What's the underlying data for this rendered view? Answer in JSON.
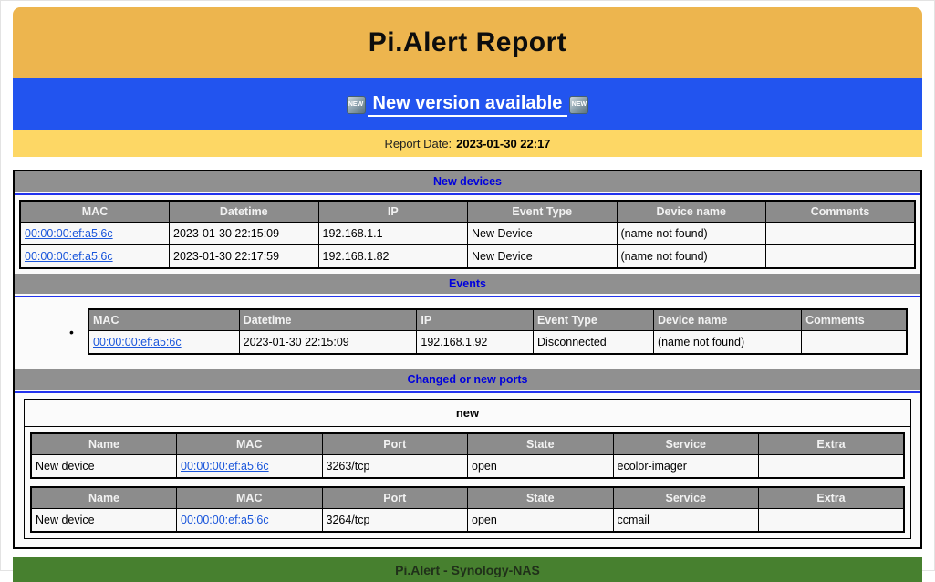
{
  "header": {
    "title": "Pi.Alert Report"
  },
  "banner": {
    "link_label": "New version available",
    "badge_label": "NEW"
  },
  "report_date": {
    "label": "Report Date:",
    "value": "2023-01-30 22:17"
  },
  "sections": {
    "new_devices": {
      "title": "New devices",
      "columns": [
        "MAC",
        "Datetime",
        "IP",
        "Event Type",
        "Device name",
        "Comments"
      ],
      "rows": [
        {
          "mac": "00:00:00:ef:a5:6c",
          "datetime": "2023-01-30 22:15:09",
          "ip": "192.168.1.1",
          "event_type": "New Device",
          "device_name": "(name not found)",
          "comments": ""
        },
        {
          "mac": "00:00:00:ef:a5:6c",
          "datetime": "2023-01-30 22:17:59",
          "ip": "192.168.1.82",
          "event_type": "New Device",
          "device_name": "(name not found)",
          "comments": ""
        }
      ]
    },
    "events": {
      "title": "Events",
      "columns": [
        "MAC",
        "Datetime",
        "IP",
        "Event Type",
        "Device name",
        "Comments"
      ],
      "rows": [
        {
          "mac": "00:00:00:ef:a5:6c",
          "datetime": "2023-01-30 22:15:09",
          "ip": "192.168.1.92",
          "event_type": "Disconnected",
          "device_name": "(name not found)",
          "comments": ""
        }
      ]
    },
    "ports": {
      "title": "Changed or new ports",
      "group_label": "new",
      "columns": [
        "Name",
        "MAC",
        "Port",
        "State",
        "Service",
        "Extra"
      ],
      "tables": [
        {
          "rows": [
            {
              "name": "New device",
              "mac": "00:00:00:ef:a5:6c",
              "port": "3263/tcp",
              "state": "open",
              "service": "ecolor-imager",
              "extra": ""
            }
          ]
        },
        {
          "rows": [
            {
              "name": "New device",
              "mac": "00:00:00:ef:a5:6c",
              "port": "3264/tcp",
              "state": "open",
              "service": "ccmail",
              "extra": ""
            }
          ]
        }
      ]
    }
  },
  "footer": {
    "label": "Pi.Alert - Synology-NAS"
  },
  "colors": {
    "header_orange": "#edb54e",
    "banner_blue": "#2254ef",
    "date_yellow": "#fdd765",
    "section_bar_gray": "#909090",
    "table_header_gray": "#8c8c8c",
    "section_title_blue": "#0000dd",
    "link_blue": "#1a56db",
    "footer_green": "#47802f"
  }
}
